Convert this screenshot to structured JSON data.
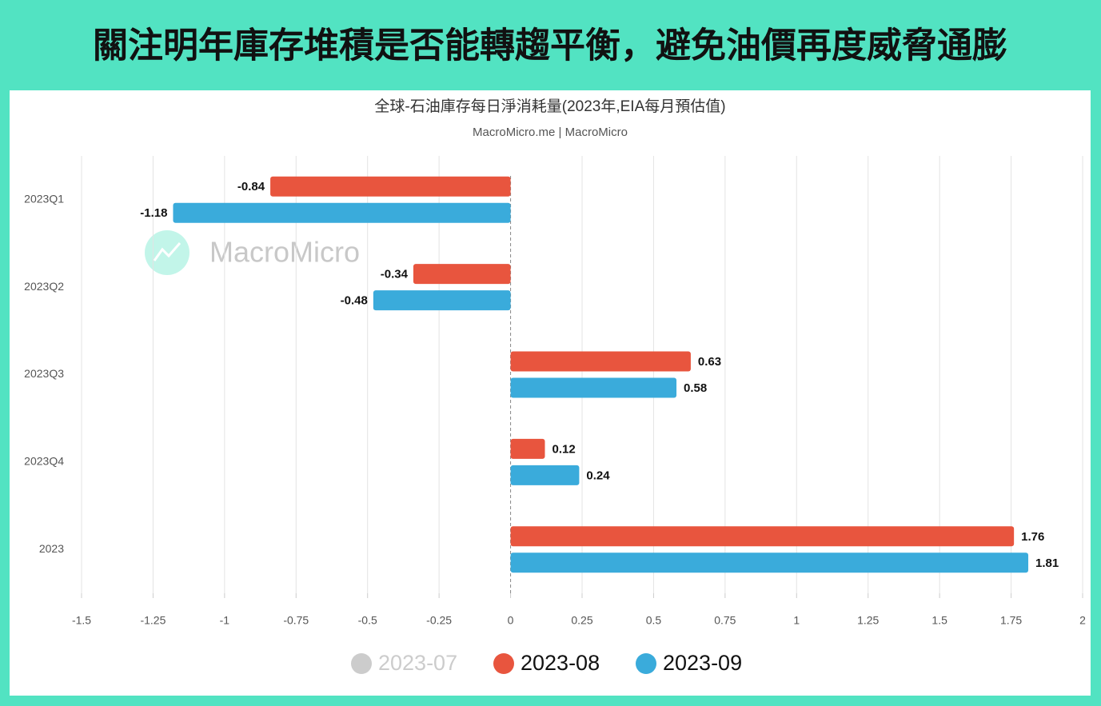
{
  "header": {
    "title": "關注明年庫存堆積是否能轉趨平衡，避免油價再度威脅通膨"
  },
  "chart_data": {
    "type": "barh",
    "title": "全球-石油庫存每日淨消耗量(2023年,EIA每月預估值)",
    "subtitle": "MacroMicro.me | MacroMicro",
    "watermark": "MacroMicro",
    "categories": [
      "2023Q1",
      "2023Q2",
      "2023Q3",
      "2023Q4",
      "2023"
    ],
    "series": [
      {
        "name": "2023-07",
        "color": "#cccccc",
        "visible": false,
        "values": [
          null,
          null,
          null,
          null,
          null
        ]
      },
      {
        "name": "2023-08",
        "color": "#e8553e",
        "visible": true,
        "values": [
          -0.84,
          -0.34,
          0.63,
          0.12,
          1.76
        ]
      },
      {
        "name": "2023-09",
        "color": "#3aabdb",
        "visible": true,
        "values": [
          -1.18,
          -0.48,
          0.58,
          0.24,
          1.81
        ]
      }
    ],
    "xlim": [
      -1.5,
      2
    ],
    "xticks": [
      -1.5,
      -1.25,
      -1,
      -0.75,
      -0.5,
      -0.25,
      0,
      0.25,
      0.5,
      0.75,
      1,
      1.25,
      1.5,
      1.75,
      2
    ],
    "grid": true
  }
}
